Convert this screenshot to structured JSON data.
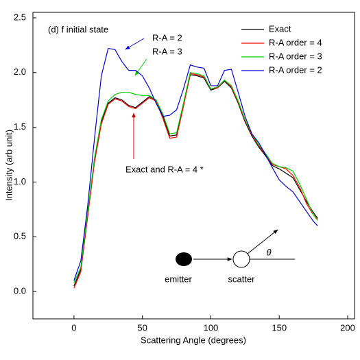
{
  "chart_data": {
    "type": "line",
    "x_label": "Scattering Angle (degrees)",
    "y_label": "Intensity (arb unit)",
    "x": [
      0,
      5,
      10,
      15,
      20,
      25,
      30,
      35,
      40,
      45,
      50,
      55,
      60,
      65,
      70,
      75,
      80,
      85,
      90,
      95,
      100,
      105,
      110,
      115,
      120,
      125,
      130,
      135,
      140,
      145,
      150,
      155,
      160,
      165,
      170,
      175,
      178
    ],
    "series": [
      {
        "name": "Exact",
        "color": "#000000",
        "values": [
          0.05,
          0.2,
          0.7,
          1.2,
          1.55,
          1.72,
          1.77,
          1.75,
          1.7,
          1.68,
          1.73,
          1.78,
          1.75,
          1.6,
          1.42,
          1.43,
          1.7,
          1.98,
          1.97,
          1.95,
          1.84,
          1.86,
          1.92,
          1.86,
          1.72,
          1.55,
          1.42,
          1.32,
          1.24,
          1.15,
          1.12,
          1.08,
          1.04,
          0.93,
          0.82,
          0.72,
          0.67
        ]
      },
      {
        "name": "R-A order = 4",
        "color": "#ff0000",
        "values": [
          0.03,
          0.18,
          0.68,
          1.18,
          1.53,
          1.71,
          1.76,
          1.74,
          1.69,
          1.67,
          1.72,
          1.77,
          1.74,
          1.58,
          1.4,
          1.41,
          1.69,
          1.99,
          1.98,
          1.96,
          1.85,
          1.86,
          1.93,
          1.87,
          1.73,
          1.56,
          1.43,
          1.33,
          1.25,
          1.16,
          1.14,
          1.12,
          1.06,
          0.95,
          0.8,
          0.7,
          0.66
        ]
      },
      {
        "name": "R-A order = 3",
        "color": "#00cc00",
        "values": [
          0.08,
          0.22,
          0.72,
          1.22,
          1.57,
          1.74,
          1.8,
          1.82,
          1.82,
          1.8,
          1.79,
          1.79,
          1.75,
          1.62,
          1.44,
          1.45,
          1.72,
          2.0,
          1.99,
          1.97,
          1.85,
          1.87,
          1.93,
          1.88,
          1.74,
          1.57,
          1.44,
          1.34,
          1.26,
          1.17,
          1.14,
          1.13,
          1.1,
          0.98,
          0.84,
          0.7,
          0.65
        ]
      },
      {
        "name": "R-A order = 2",
        "color": "#0000cc",
        "values": [
          0.1,
          0.28,
          0.78,
          1.4,
          1.97,
          2.22,
          2.21,
          2.1,
          2.02,
          2.02,
          1.97,
          1.86,
          1.72,
          1.6,
          1.61,
          1.66,
          1.85,
          2.07,
          2.05,
          2.04,
          1.88,
          1.88,
          2.02,
          2.03,
          1.82,
          1.6,
          1.44,
          1.36,
          1.25,
          1.13,
          1.02,
          0.96,
          0.91,
          0.82,
          0.73,
          0.64,
          0.6
        ]
      }
    ],
    "xlim": [
      -30,
      205
    ],
    "ylim": [
      -0.25,
      2.55
    ],
    "xticks": [
      0,
      50,
      100,
      150,
      200
    ],
    "yticks": [
      {
        "value": 0,
        "label": "0.0"
      },
      {
        "value": 0.5,
        "label": "0.5"
      },
      {
        "value": 1,
        "label": "1.0"
      },
      {
        "value": 1.5,
        "label": "1.5"
      },
      {
        "value": 2,
        "label": "2.0"
      },
      {
        "value": 2.5,
        "label": "2.5"
      }
    ],
    "legend": "upper right",
    "annotations": [
      "(d) f initial state",
      "R-A = 2",
      "R-A = 3",
      "Exact and R-A = 4 *",
      "emitter",
      "scatter",
      "θ"
    ]
  }
}
